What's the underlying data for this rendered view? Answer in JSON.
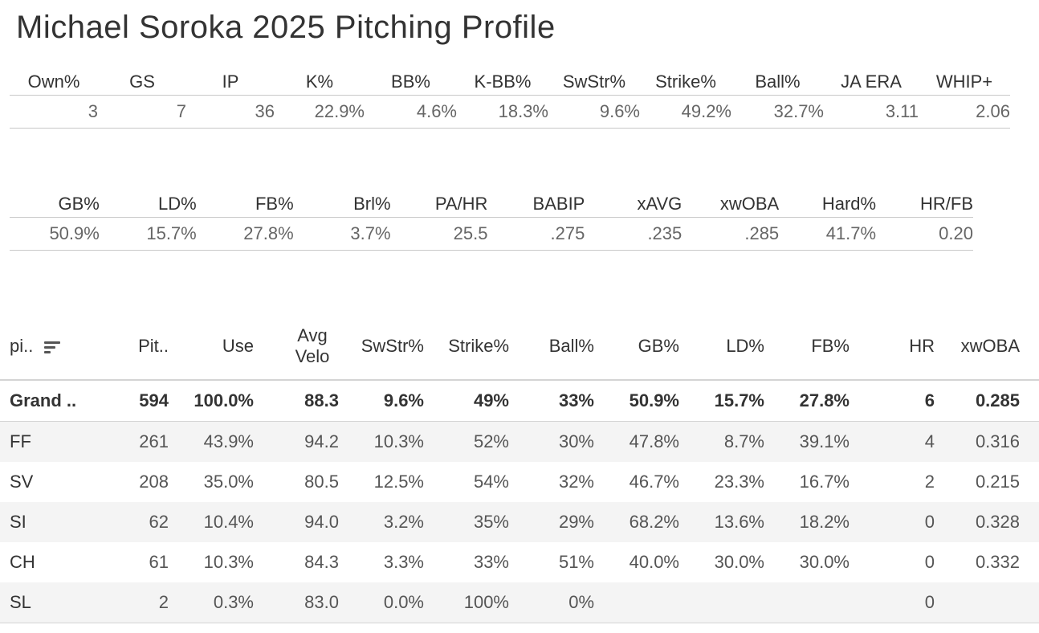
{
  "title": "Michael Soroka 2025 Pitching Profile",
  "summary1": {
    "headers": [
      "Own%",
      "GS",
      "IP",
      "K%",
      "BB%",
      "K-BB%",
      "SwStr%",
      "Strike%",
      "Ball%",
      "JA ERA",
      "WHIP+"
    ],
    "values": [
      "3",
      "7",
      "36",
      "22.9%",
      "4.6%",
      "18.3%",
      "9.6%",
      "49.2%",
      "32.7%",
      "3.11",
      "2.06"
    ]
  },
  "summary2": {
    "headers": [
      "GB%",
      "LD%",
      "FB%",
      "Brl%",
      "PA/HR",
      "BABIP",
      "xAVG",
      "xwOBA",
      "Hard%",
      "HR/FB"
    ],
    "values": [
      "50.9%",
      "15.7%",
      "27.8%",
      "3.7%",
      "25.5",
      ".275",
      ".235",
      ".285",
      "41.7%",
      "0.20"
    ]
  },
  "pitches": {
    "headers": [
      "pi..",
      "Pit..",
      "Use",
      "Avg Velo",
      "SwStr%",
      "Strike%",
      "Ball%",
      "GB%",
      "LD%",
      "FB%",
      "HR",
      "xwOBA"
    ],
    "rows": [
      [
        "Grand ..",
        "594",
        "100.0%",
        "88.3",
        "9.6%",
        "49%",
        "33%",
        "50.9%",
        "15.7%",
        "27.8%",
        "6",
        "0.285"
      ],
      [
        "FF",
        "261",
        "43.9%",
        "94.2",
        "10.3%",
        "52%",
        "30%",
        "47.8%",
        "8.7%",
        "39.1%",
        "4",
        "0.316"
      ],
      [
        "SV",
        "208",
        "35.0%",
        "80.5",
        "12.5%",
        "54%",
        "32%",
        "46.7%",
        "23.3%",
        "16.7%",
        "2",
        "0.215"
      ],
      [
        "SI",
        "62",
        "10.4%",
        "94.0",
        "3.2%",
        "35%",
        "29%",
        "68.2%",
        "13.6%",
        "18.2%",
        "0",
        "0.328"
      ],
      [
        "CH",
        "61",
        "10.3%",
        "84.3",
        "3.3%",
        "33%",
        "51%",
        "40.0%",
        "30.0%",
        "30.0%",
        "0",
        "0.332"
      ],
      [
        "SL",
        "2",
        "0.3%",
        "83.0",
        "0.0%",
        "100%",
        "0%",
        "",
        "",
        "",
        "0",
        ""
      ]
    ]
  },
  "icons": {
    "sort": "sort-descending-icon"
  }
}
